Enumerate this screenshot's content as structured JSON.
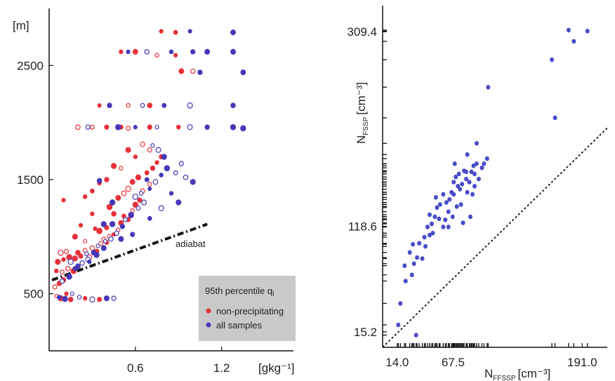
{
  "chart_data": [
    {
      "type": "scatter",
      "xlabel": "[gkg⁻¹]",
      "ylabel": "[m]",
      "x_ticks": [
        "0.6",
        "1.2"
      ],
      "y_ticks": [
        "500",
        "1500",
        "2500"
      ],
      "xlim": [
        0,
        1.7
      ],
      "ylim": [
        0,
        3000
      ],
      "legend": {
        "title": "95th percentile q",
        "title_sub": "l",
        "position": "bottom-right",
        "entries": [
          {
            "label": "non-precipitating",
            "color": "#e8303a"
          },
          {
            "label": "all samples",
            "color": "#4438b8"
          }
        ]
      },
      "annotation": "adiabat",
      "adiabat_line": {
        "x": [
          0.02,
          1.1
        ],
        "y": [
          620,
          1110
        ]
      },
      "series": [
        {
          "name": "non-precipitating",
          "color": "#e8303a",
          "points": [
            [
              0.05,
              480
            ],
            [
              0.08,
              460
            ],
            [
              0.12,
              500
            ],
            [
              0.15,
              450
            ],
            [
              0.04,
              560
            ],
            [
              0.07,
              590
            ],
            [
              0.1,
              620
            ],
            [
              0.05,
              700
            ],
            [
              0.09,
              690
            ],
            [
              0.13,
              720
            ],
            [
              0.17,
              700
            ],
            [
              0.06,
              780
            ],
            [
              0.1,
              800
            ],
            [
              0.14,
              820
            ],
            [
              0.18,
              810
            ],
            [
              0.22,
              830
            ],
            [
              0.08,
              860
            ],
            [
              0.12,
              870
            ],
            [
              0.2,
              860
            ],
            [
              0.25,
              880
            ],
            [
              0.28,
              820
            ],
            [
              0.3,
              900
            ],
            [
              0.33,
              870
            ],
            [
              0.36,
              940
            ],
            [
              0.38,
              980
            ],
            [
              0.4,
              950
            ],
            [
              0.42,
              1000
            ],
            [
              0.45,
              1020
            ],
            [
              0.48,
              1060
            ],
            [
              0.4,
              1080
            ],
            [
              0.35,
              1050
            ],
            [
              0.5,
              1120
            ],
            [
              0.52,
              1180
            ],
            [
              0.55,
              1150
            ],
            [
              0.58,
              1230
            ],
            [
              0.45,
              1200
            ],
            [
              0.42,
              1260
            ],
            [
              0.6,
              1280
            ],
            [
              0.63,
              1320
            ],
            [
              0.48,
              1340
            ],
            [
              0.52,
              1380
            ],
            [
              0.55,
              1420
            ],
            [
              0.65,
              1400
            ],
            [
              0.7,
              1460
            ],
            [
              0.58,
              1480
            ],
            [
              0.62,
              1520
            ],
            [
              0.68,
              1560
            ],
            [
              0.72,
              1600
            ],
            [
              0.5,
              1600
            ],
            [
              0.75,
              1650
            ],
            [
              0.78,
              1700
            ],
            [
              0.6,
              1700
            ],
            [
              0.55,
              1760
            ],
            [
              0.65,
              1810
            ],
            [
              0.7,
              1760
            ],
            [
              0.45,
              1620
            ],
            [
              0.4,
              1500
            ],
            [
              0.35,
              1470
            ],
            [
              0.3,
              1400
            ],
            [
              0.25,
              1350
            ],
            [
              0.3,
              1200
            ],
            [
              0.22,
              1100
            ],
            [
              0.18,
              1000
            ],
            [
              0.25,
              960
            ],
            [
              0.32,
              1070
            ],
            [
              0.1,
              1320
            ],
            [
              0.2,
              1960
            ],
            [
              0.3,
              1960
            ],
            [
              0.4,
              1960
            ],
            [
              0.5,
              1960
            ],
            [
              0.55,
              1950
            ],
            [
              0.7,
              1960
            ],
            [
              0.9,
              1960
            ],
            [
              0.35,
              2150
            ],
            [
              0.55,
              2150
            ],
            [
              0.7,
              2150
            ],
            [
              0.5,
              2620
            ],
            [
              0.6,
              2620
            ],
            [
              0.75,
              2590
            ],
            [
              0.88,
              2590
            ],
            [
              0.92,
              2450
            ],
            [
              1.0,
              2450
            ],
            [
              0.78,
              2800
            ],
            [
              0.88,
              2790
            ],
            [
              0.25,
              460
            ],
            [
              0.35,
              450
            ]
          ]
        },
        {
          "name": "all samples",
          "color": "#4438b8",
          "points": [
            [
              0.07,
              470
            ],
            [
              0.11,
              455
            ],
            [
              0.16,
              500
            ],
            [
              0.21,
              470
            ],
            [
              0.09,
              610
            ],
            [
              0.14,
              650
            ],
            [
              0.18,
              720
            ],
            [
              0.23,
              770
            ],
            [
              0.27,
              800
            ],
            [
              0.15,
              780
            ],
            [
              0.26,
              850
            ],
            [
              0.31,
              860
            ],
            [
              0.34,
              920
            ],
            [
              0.39,
              960
            ],
            [
              0.43,
              980
            ],
            [
              0.47,
              1030
            ],
            [
              0.51,
              1090
            ],
            [
              0.44,
              1110
            ],
            [
              0.53,
              1150
            ],
            [
              0.57,
              1190
            ],
            [
              0.62,
              1250
            ],
            [
              0.66,
              1300
            ],
            [
              0.6,
              1350
            ],
            [
              0.64,
              1380
            ],
            [
              0.7,
              1420
            ],
            [
              0.74,
              1480
            ],
            [
              0.68,
              1500
            ],
            [
              0.78,
              1540
            ],
            [
              0.82,
              1600
            ],
            [
              0.88,
              1560
            ],
            [
              0.92,
              1640
            ],
            [
              0.8,
              1700
            ],
            [
              0.76,
              1760
            ],
            [
              0.72,
              1800
            ],
            [
              0.95,
              1520
            ],
            [
              1.0,
              1480
            ],
            [
              0.85,
              1380
            ],
            [
              0.9,
              1300
            ],
            [
              0.78,
              1250
            ],
            [
              0.7,
              1160
            ],
            [
              0.58,
              1020
            ],
            [
              0.5,
              980
            ],
            [
              0.38,
              900
            ],
            [
              0.33,
              840
            ],
            [
              0.28,
              780
            ],
            [
              0.2,
              740
            ],
            [
              0.38,
              1110
            ],
            [
              0.44,
              1300
            ],
            [
              0.35,
              1490
            ],
            [
              0.27,
              1960
            ],
            [
              0.48,
              1960
            ],
            [
              0.6,
              1960
            ],
            [
              0.75,
              1960
            ],
            [
              0.98,
              1960
            ],
            [
              1.1,
              1960
            ],
            [
              1.28,
              1960
            ],
            [
              1.35,
              1950
            ],
            [
              0.42,
              2150
            ],
            [
              0.65,
              2150
            ],
            [
              0.8,
              2150
            ],
            [
              0.98,
              2150
            ],
            [
              1.28,
              2150
            ],
            [
              0.55,
              2620
            ],
            [
              0.68,
              2620
            ],
            [
              0.85,
              2620
            ],
            [
              1.0,
              2620
            ],
            [
              1.1,
              2620
            ],
            [
              1.28,
              2620
            ],
            [
              1.05,
              2440
            ],
            [
              1.35,
              2440
            ],
            [
              0.98,
              2800
            ],
            [
              1.28,
              2790
            ],
            [
              0.3,
              450
            ],
            [
              0.4,
              460
            ],
            [
              0.45,
              460
            ]
          ]
        }
      ]
    },
    {
      "type": "scatter",
      "xlabel": "N",
      "xlabel_sub": "FFSSP",
      "xlabel_unit": "[cm⁻³]",
      "ylabel": "N",
      "ylabel_sub": "FSSP",
      "ylabel_unit": "[cm⁻³]",
      "x_ticks": [
        "14.0",
        "67.5",
        "191.0"
      ],
      "y_ticks": [
        "15.2",
        "118.6",
        "309.4"
      ],
      "xlim": [
        0,
        215
      ],
      "ylim": [
        0,
        335
      ],
      "one_to_one_line": true,
      "series": [
        {
          "name": "",
          "color": "#4a4cc8",
          "points": [
            [
              15,
              22
            ],
            [
              17,
              43
            ],
            [
              22,
              65
            ],
            [
              21,
              80
            ],
            [
              26,
              93
            ],
            [
              28,
              71
            ],
            [
              29,
              101
            ],
            [
              30,
              82
            ],
            [
              32,
              12
            ],
            [
              33,
              88
            ],
            [
              35,
              102
            ],
            [
              38,
              87
            ],
            [
              40,
              108
            ],
            [
              41,
              99
            ],
            [
              43,
              118
            ],
            [
              45,
              110
            ],
            [
              47,
              121
            ],
            [
              45,
              130
            ],
            [
              48,
              112
            ],
            [
              50,
              128
            ],
            [
              52,
              137
            ],
            [
              55,
              140
            ],
            [
              51,
              147
            ],
            [
              58,
              150
            ],
            [
              60,
              125
            ],
            [
              63,
              133
            ],
            [
              64,
              145
            ],
            [
              66,
              152
            ],
            [
              68,
              162
            ],
            [
              70,
              167
            ],
            [
              72,
              158
            ],
            [
              74,
              155
            ],
            [
              76,
              160
            ],
            [
              78,
              173
            ],
            [
              80,
              172
            ],
            [
              81,
              152
            ],
            [
              83,
              162
            ],
            [
              85,
              172
            ],
            [
              88,
              170
            ],
            [
              90,
              180
            ],
            [
              86,
              150
            ],
            [
              92,
              165
            ],
            [
              95,
              176
            ],
            [
              97,
              180
            ],
            [
              63,
              118
            ],
            [
              67,
              128
            ],
            [
              71,
              138
            ],
            [
              58,
              118
            ],
            [
              54,
              126
            ],
            [
              61,
              142
            ],
            [
              68,
              150
            ],
            [
              75,
              140
            ],
            [
              80,
              165
            ],
            [
              88,
              158
            ],
            [
              77,
              122
            ],
            [
              84,
              128
            ],
            [
              100,
              185
            ],
            [
              101,
              255
            ],
            [
              165,
              225
            ],
            [
              162,
              282
            ],
            [
              178,
              311
            ],
            [
              183,
              300
            ],
            [
              196,
              310
            ],
            [
              90,
              200
            ],
            [
              87,
              178
            ],
            [
              81,
              189
            ],
            [
              73,
              170
            ],
            [
              69,
              180
            ]
          ]
        }
      ]
    }
  ]
}
